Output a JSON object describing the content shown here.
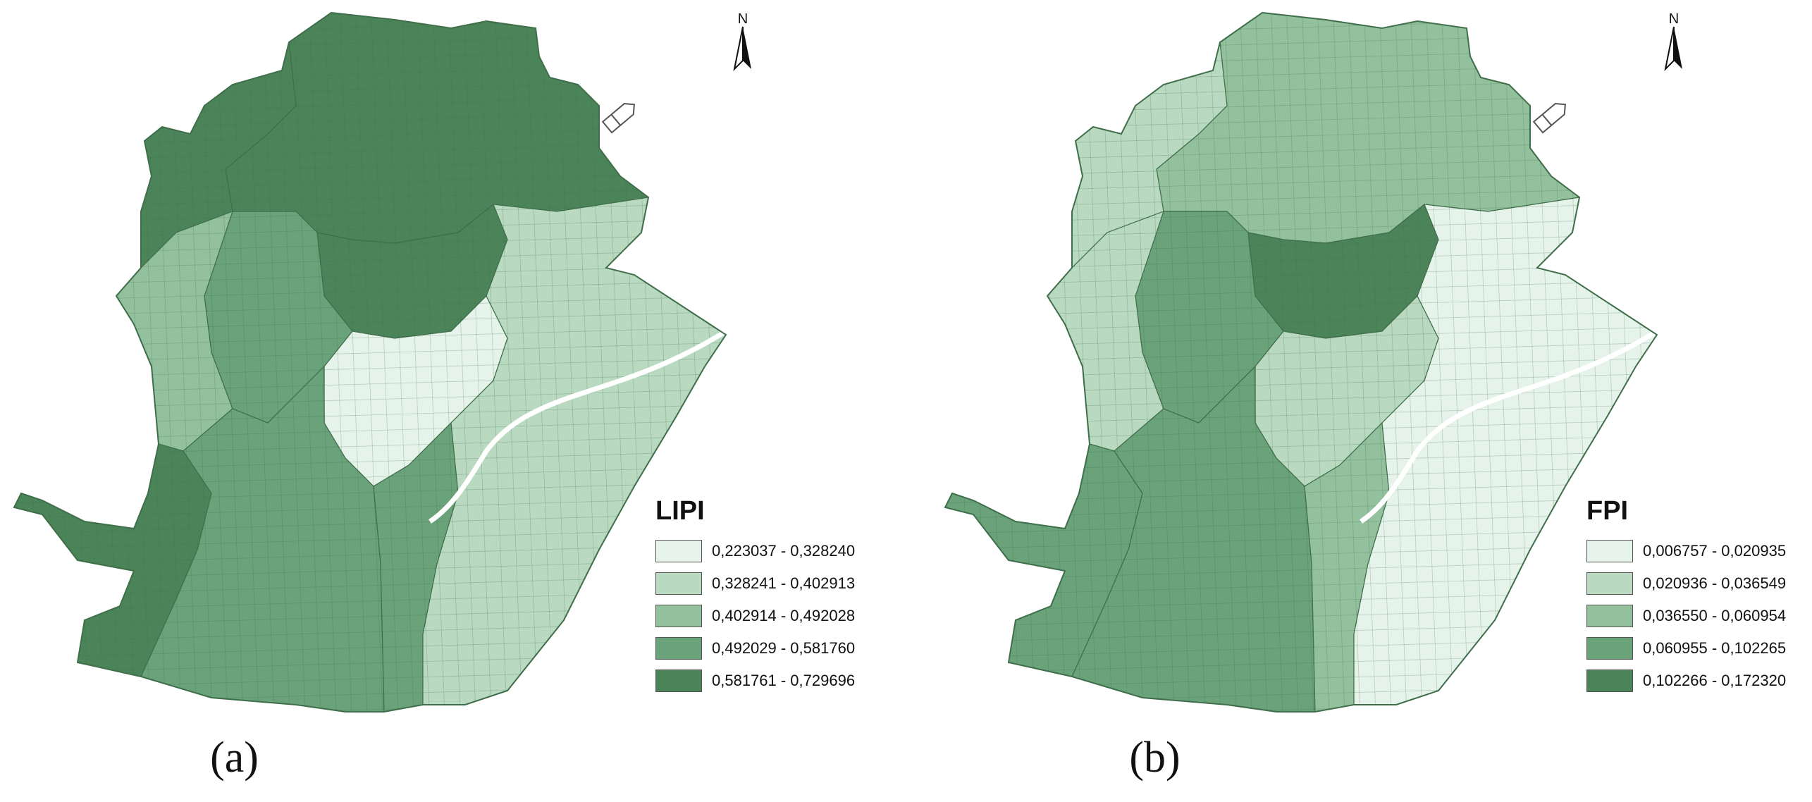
{
  "colors": {
    "class1": "#e6f3ea",
    "class2": "#b9d9c1",
    "class3": "#93c19d",
    "class4": "#6aa27a",
    "class5": "#4c8459",
    "boundary": "#3f6e4a",
    "water": "#ffffff"
  },
  "north_label": "N",
  "panels": [
    {
      "label": "(a)",
      "legend_title": "LIPI",
      "legend": [
        "0,223037 - 0,328240",
        "0,328241 - 0,402913",
        "0,402914 - 0,492028",
        "0,492029 - 0,581760",
        "0,581761 - 0,729696"
      ],
      "zone_classes": {
        "north": 5,
        "northwest": 5,
        "center_north": 5,
        "inner_ring": 4,
        "west": 3,
        "center": 1,
        "southwest_strip": 5,
        "south_center": 4,
        "east_hills": 2,
        "south": 4
      }
    },
    {
      "label": "(b)",
      "legend_title": "FPI",
      "legend": [
        "0,006757 - 0,020935",
        "0,020936 - 0,036549",
        "0,036550 - 0,060954",
        "0,060955 - 0,102265",
        "0,102266 - 0,172320"
      ],
      "zone_classes": {
        "north": 3,
        "northwest": 2,
        "center_north": 5,
        "inner_ring": 4,
        "west": 2,
        "center": 2,
        "southwest_strip": 4,
        "south_center": 4,
        "east_hills": 1,
        "south": 3
      }
    }
  ]
}
